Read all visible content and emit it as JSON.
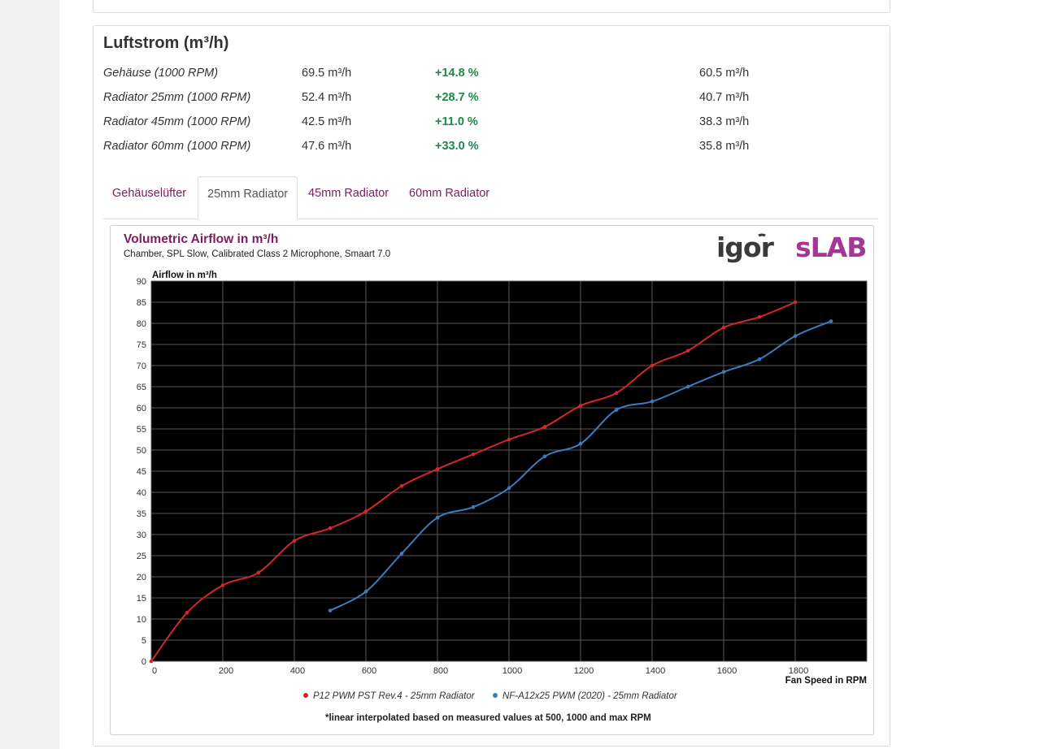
{
  "section": {
    "title": "Luftstrom (m³/h)",
    "rows": [
      {
        "label": "Gehäuse (1000 RPM)",
        "a": "69.5 m³/h",
        "pct": "+14.8 %",
        "b": "60.5 m³/h"
      },
      {
        "label": "Radiator 25mm (1000 RPM)",
        "a": "52.4 m³/h",
        "pct": "+28.7 %",
        "b": "40.7 m³/h"
      },
      {
        "label": "Radiator 45mm (1000 RPM)",
        "a": "42.5 m³/h",
        "pct": "+11.0 %",
        "b": "38.3 m³/h"
      },
      {
        "label": "Radiator 60mm (1000 RPM)",
        "a": "47.6 m³/h",
        "pct": "+33.0 %",
        "b": "35.8 m³/h"
      }
    ]
  },
  "tabs": [
    {
      "label": "Gehäuselüfter"
    },
    {
      "label": "25mm Radiator",
      "active": true
    },
    {
      "label": "45mm Radiator"
    },
    {
      "label": "60mm Radiator"
    }
  ],
  "logo": {
    "left": "igor",
    "right": "sLAB"
  },
  "colors": {
    "accent": "#7b1d61",
    "positive": "#1d8a48",
    "series1": "#d62728",
    "series2": "#3a7dbf",
    "plot_bg": "#000000",
    "logo_purple": "#a43795",
    "logo_dark": "#3a3a3a"
  },
  "chart_data": {
    "type": "line",
    "title": "Volumetric Airflow in m³/h",
    "subtitle": "Chamber, SPL Slow, Calibrated Class 2 Microphone, Smaart 7.0",
    "ylabel": "Airflow in m³/h",
    "xlabel": "Fan Speed in RPM",
    "xlim": [
      0,
      2000
    ],
    "ylim": [
      0,
      90
    ],
    "xticks": [
      0,
      200,
      400,
      600,
      800,
      1000,
      1200,
      1400,
      1600,
      1800
    ],
    "yticks": [
      0,
      5,
      10,
      15,
      20,
      25,
      30,
      35,
      40,
      45,
      50,
      55,
      60,
      65,
      70,
      75,
      80,
      85,
      90
    ],
    "grid": true,
    "legend_position": "bottom",
    "footnote": "*linear interpolated based on measured values at 500, 1000 and max RPM",
    "series": [
      {
        "name": "P12 PWM PST Rev.4 - 25mm Radiator",
        "color": "#d62728",
        "x": [
          0,
          100,
          200,
          300,
          400,
          500,
          600,
          700,
          800,
          900,
          1000,
          1100,
          1200,
          1300,
          1400,
          1500,
          1600,
          1700,
          1800
        ],
        "y": [
          0,
          11.5,
          18,
          21,
          28.5,
          31.5,
          35.5,
          41.5,
          45.5,
          49,
          52.5,
          55.5,
          60.5,
          63.5,
          70,
          73.5,
          79,
          81.5,
          85
        ]
      },
      {
        "name": "NF-A12x25 PWM (2020) - 25mm Radiator",
        "color": "#3a7dbf",
        "x": [
          500,
          600,
          700,
          800,
          900,
          1000,
          1100,
          1200,
          1300,
          1400,
          1500,
          1600,
          1700,
          1800,
          1900
        ],
        "y": [
          12,
          16.5,
          25.5,
          34,
          36.5,
          41,
          48.5,
          51.5,
          59.5,
          61.5,
          65,
          68.5,
          71.5,
          77,
          80.5
        ]
      }
    ]
  }
}
